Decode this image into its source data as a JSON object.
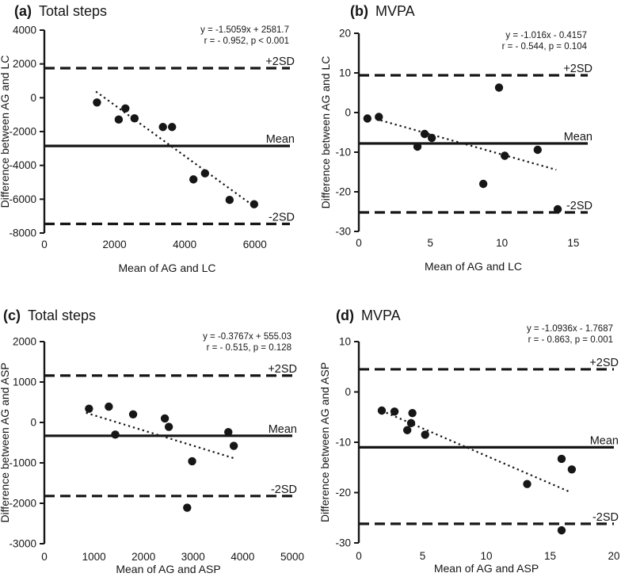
{
  "figure": {
    "name": "Bland-Altman agreement plots",
    "background": "#ffffff",
    "ink_color": "#161616"
  },
  "chart_data": [
    {
      "type": "scatter",
      "panel_label": "(a)",
      "title": "Total steps",
      "annotation": [
        "y = -1.5059x + 2581.7",
        "r = - 0.952, p < 0.001"
      ],
      "xlabel": "Mean of AG and LC",
      "ylabel": "Difference between AG and LC",
      "xlim": [
        0,
        7000
      ],
      "ylim": [
        -8000,
        4000
      ],
      "xticks": [
        0,
        2000,
        4000,
        6000
      ],
      "yticks": [
        4000,
        2000,
        0,
        -2000,
        -4000,
        -6000,
        -8000
      ],
      "grid": false,
      "legend": false,
      "ref_lines": {
        "plus2sd": 1750,
        "mean": -2850,
        "minus2sd": -7460
      },
      "ref_line_labels": {
        "plus2sd": "+2SD",
        "mean": "Mean",
        "minus2sd": "-2SD"
      },
      "trend": {
        "slope": -1.5059,
        "intercept": 2581.7,
        "x_start": 1470,
        "x_end": 5900
      },
      "points": [
        [
          1500,
          -280
        ],
        [
          2120,
          -1290
        ],
        [
          2310,
          -630
        ],
        [
          2570,
          -1220
        ],
        [
          3380,
          -1730
        ],
        [
          3640,
          -1730
        ],
        [
          4250,
          -4830
        ],
        [
          4580,
          -4470
        ],
        [
          5280,
          -6040
        ],
        [
          5980,
          -6300
        ]
      ]
    },
    {
      "type": "scatter",
      "panel_label": "(b)",
      "title": "MVPA",
      "annotation": [
        "y = -1.016x - 0.4157",
        "r = - 0.544, p = 0.104"
      ],
      "xlabel": "Mean of AG and LC",
      "ylabel": "Difference between AG and LC",
      "xlim": [
        0,
        16
      ],
      "ylim": [
        -30,
        20
      ],
      "xticks": [
        0,
        5,
        10,
        15
      ],
      "yticks": [
        20,
        10,
        0,
        -10,
        -20,
        -30
      ],
      "grid": false,
      "legend": false,
      "ref_lines": {
        "plus2sd": 9.4,
        "mean": -7.8,
        "minus2sd": -25.2
      },
      "ref_line_labels": {
        "plus2sd": "+2SD",
        "mean": "Mean",
        "minus2sd": "-2SD"
      },
      "trend": {
        "slope": -1.016,
        "intercept": -0.4157,
        "x_start": 1.2,
        "x_end": 13.8
      },
      "points": [
        [
          0.6,
          -1.5
        ],
        [
          1.4,
          -1.1
        ],
        [
          4.1,
          -8.6
        ],
        [
          4.6,
          -5.4
        ],
        [
          5.1,
          -6.4
        ],
        [
          8.7,
          -18.0
        ],
        [
          9.8,
          6.3
        ],
        [
          10.2,
          -10.9
        ],
        [
          12.5,
          -9.4
        ],
        [
          13.9,
          -24.4
        ]
      ]
    },
    {
      "type": "scatter",
      "panel_label": "(c)",
      "title": "Total steps",
      "annotation": [
        "y = -0.3767x + 555.03",
        "r = - 0.515, p = 0.128"
      ],
      "xlabel": "Mean of AG and ASP",
      "ylabel": "Difference between AG and ASP",
      "xlim": [
        0,
        5000
      ],
      "ylim": [
        -3000,
        2000
      ],
      "xticks": [
        0,
        1000,
        2000,
        3000,
        4000,
        5000
      ],
      "yticks": [
        2000,
        1000,
        0,
        -1000,
        -2000,
        -3000
      ],
      "grid": false,
      "legend": false,
      "ref_lines": {
        "plus2sd": 1160,
        "mean": -330,
        "minus2sd": -1820
      },
      "ref_line_labels": {
        "plus2sd": "+2SD",
        "mean": "Mean",
        "minus2sd": "-2SD"
      },
      "trend": {
        "slope": -0.3767,
        "intercept": 555.03,
        "x_start": 840,
        "x_end": 3850
      },
      "points": [
        [
          900,
          340
        ],
        [
          1300,
          390
        ],
        [
          1430,
          -300
        ],
        [
          1790,
          200
        ],
        [
          2430,
          100
        ],
        [
          2510,
          -110
        ],
        [
          2880,
          -2110
        ],
        [
          2980,
          -960
        ],
        [
          3710,
          -240
        ],
        [
          3820,
          -580
        ]
      ]
    },
    {
      "type": "scatter",
      "panel_label": "(d)",
      "title": "MVPA",
      "annotation": [
        "y = -1.0936x - 1.7687",
        "r = - 0.863, p = 0.001"
      ],
      "xlabel": "Mean of AG and ASP",
      "ylabel": "Difference between AG and ASP",
      "xlim": [
        0,
        20
      ],
      "ylim": [
        -30,
        10
      ],
      "xticks": [
        0,
        5,
        10,
        15,
        20
      ],
      "yticks": [
        10,
        0,
        -10,
        -20,
        -30
      ],
      "grid": false,
      "legend": false,
      "ref_lines": {
        "plus2sd": 4.5,
        "mean": -11.0,
        "minus2sd": -26.2
      },
      "ref_line_labels": {
        "plus2sd": "+2SD",
        "mean": "Mean",
        "minus2sd": "-2SD"
      },
      "trend": {
        "slope": -1.0936,
        "intercept": -1.7687,
        "x_start": 1.8,
        "x_end": 16.5
      },
      "points": [
        [
          1.8,
          -3.7
        ],
        [
          2.8,
          -3.9
        ],
        [
          3.8,
          -7.6
        ],
        [
          4.1,
          -6.2
        ],
        [
          4.2,
          -4.2
        ],
        [
          5.2,
          -8.5
        ],
        [
          13.2,
          -18.3
        ],
        [
          15.9,
          -13.3
        ],
        [
          15.9,
          -27.5
        ],
        [
          16.7,
          -15.4
        ]
      ]
    }
  ]
}
